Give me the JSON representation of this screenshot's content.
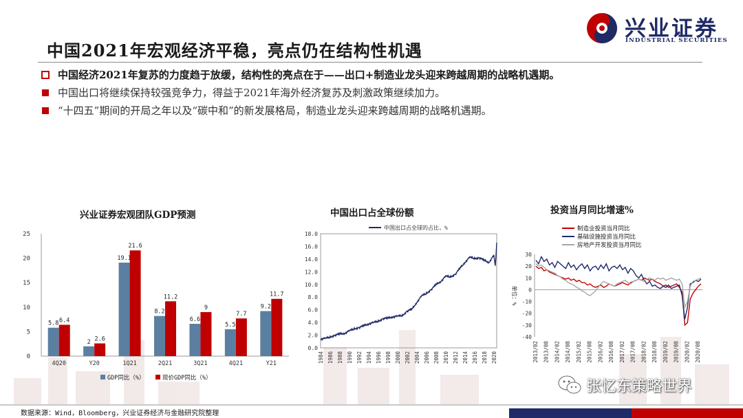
{
  "brand": {
    "name_cn": "兴业证券",
    "name_en": "INDUSTRIAL SECURITIES",
    "colors": {
      "navy": "#1f2a66",
      "red": "#c00000",
      "steel": "#5b7fa0"
    }
  },
  "slide": {
    "title": "中国2021年宏观经济平稳，亮点仍在结构性机遇",
    "bullets": [
      {
        "style": "hollow-square",
        "text": "中国经济2021年复苏的力度趋于放缓，结构性的亮点在于——出口+制造业龙头迎来跨越周期的战略机遇期。"
      },
      {
        "style": "filled-square",
        "text": "中国出口将继续保持较强竞争力，得益于2021年海外经济复苏及刺激政策继续加力。"
      },
      {
        "style": "filled-square",
        "text": "“十四五”期间的开局之年以及“碳中和”的新发展格局，制造业龙头迎来跨越周期的战略机遇期。"
      }
    ],
    "source": "数据来源：Wind，Bloomberg，兴业证券经济与金融研究院整理",
    "watermark": "张忆东策略世界"
  },
  "chart_data": [
    {
      "type": "bar",
      "title": "兴业证券宏观团队GDP预测",
      "categories": [
        "4Q20",
        "Y20",
        "1Q21",
        "2Q21",
        "3Q21",
        "4Q21",
        "Y21"
      ],
      "series": [
        {
          "name": "GDP同比（%）",
          "color": "#5b7fa0",
          "values": [
            5.8,
            2,
            19.1,
            8.2,
            6.6,
            5.5,
            9.2
          ]
        },
        {
          "name": "现价GDP同比（%）",
          "color": "#c00000",
          "values": [
            6.4,
            2.6,
            21.6,
            11.2,
            9,
            7.7,
            11.7
          ]
        }
      ],
      "value_labels": [
        [
          "5.8",
          "2",
          "19.1",
          "8.2",
          "6.6",
          "5.5",
          "9.2"
        ],
        [
          "6.4",
          "2.6",
          "21.6",
          "11.2",
          "9",
          "7.7",
          "11.7"
        ]
      ],
      "yticks": [
        "0",
        "5",
        "10",
        "15",
        "20",
        "25"
      ],
      "ylim": [
        0,
        25
      ],
      "legend": "bottom",
      "grid": false
    },
    {
      "type": "line",
      "title": "中国出口占全球份额",
      "series_name": "中国出口占全球的占比，%",
      "series_color": "#1f2a66",
      "x_range": [
        1984,
        2020.6
      ],
      "xticks": [
        "1984",
        "1986",
        "1988",
        "1990",
        "1992",
        "1994",
        "1996",
        "1998",
        "2000",
        "2002",
        "2004",
        "2006",
        "2008",
        "2010",
        "2012",
        "2014",
        "2016",
        "2018",
        "2020"
      ],
      "yticks": [
        "0.0",
        "2.0",
        "4.0",
        "6.0",
        "8.0",
        "10.0",
        "12.0",
        "14.0",
        "16.0",
        "18.0"
      ],
      "ylim": [
        0,
        18
      ],
      "points": [
        [
          1984,
          1.4
        ],
        [
          1985,
          1.5
        ],
        [
          1986,
          1.7
        ],
        [
          1987,
          2.0
        ],
        [
          1988,
          2.2
        ],
        [
          1989,
          2.3
        ],
        [
          1990,
          2.7
        ],
        [
          1991,
          3.0
        ],
        [
          1992,
          3.2
        ],
        [
          1993,
          3.5
        ],
        [
          1994,
          3.8
        ],
        [
          1995,
          4.0
        ],
        [
          1996,
          4.2
        ],
        [
          1997,
          4.6
        ],
        [
          1998,
          4.7
        ],
        [
          1999,
          4.9
        ],
        [
          2000,
          5.0
        ],
        [
          2001,
          5.1
        ],
        [
          2002,
          5.8
        ],
        [
          2003,
          6.1
        ],
        [
          2004,
          7.2
        ],
        [
          2005,
          8.2
        ],
        [
          2006,
          8.6
        ],
        [
          2007,
          9.2
        ],
        [
          2008,
          10.0
        ],
        [
          2009,
          10.5
        ],
        [
          2010,
          11.3
        ],
        [
          2011,
          11.2
        ],
        [
          2012,
          11.6
        ],
        [
          2013,
          12.6
        ],
        [
          2014,
          13.5
        ],
        [
          2015,
          14.3
        ],
        [
          2016,
          14.1
        ],
        [
          2017,
          14.2
        ],
        [
          2018,
          13.8
        ],
        [
          2019,
          13.5
        ],
        [
          2020,
          14.6
        ],
        [
          2020.3,
          12.8
        ],
        [
          2020.6,
          16.6
        ]
      ],
      "legend": "top",
      "grid": false
    },
    {
      "type": "line",
      "title": "投资当月同比增速%",
      "ylabel": "单位：%",
      "ylim": [
        -40,
        30
      ],
      "yticks": [
        "30",
        "20",
        "10",
        "0",
        "-10",
        "-20",
        "-30",
        "-40"
      ],
      "xticks": [
        "2013/02",
        "2013/08",
        "2014/02",
        "2014/08",
        "2015/02",
        "2015/08",
        "2016/02",
        "2016/08",
        "2017/02",
        "2017/08",
        "2018/02",
        "2018/08",
        "2019/02",
        "2019/08",
        "2020/02",
        "2020/08"
      ],
      "legend": "top-left",
      "grid": false,
      "series": [
        {
          "name": "制造业投资当月同比",
          "color": "#c00000",
          "values": [
            20,
            18,
            19,
            16,
            17,
            15,
            14,
            13,
            12,
            11,
            10,
            9,
            10,
            8,
            9,
            7,
            8,
            6,
            6,
            4,
            5,
            3,
            2,
            3,
            4,
            2,
            3,
            5,
            4,
            3,
            4,
            5,
            6,
            5,
            4,
            6,
            7,
            8,
            9,
            8,
            10,
            9,
            8,
            9,
            7,
            6,
            5,
            3,
            4,
            2,
            3,
            4,
            5,
            2,
            -2,
            -30,
            -28,
            -8,
            -3,
            0,
            3,
            5
          ]
        },
        {
          "name": "基础设施投资当月同比",
          "color": "#1f2a66",
          "values": [
            25,
            22,
            28,
            24,
            26,
            21,
            23,
            19,
            24,
            22,
            20,
            18,
            23,
            19,
            21,
            17,
            20,
            22,
            18,
            21,
            16,
            19,
            20,
            17,
            21,
            18,
            22,
            16,
            19,
            20,
            18,
            21,
            17,
            19,
            14,
            18,
            16,
            12,
            10,
            13,
            8,
            5,
            7,
            3,
            4,
            2,
            1,
            3,
            2,
            4,
            1,
            2,
            3,
            4,
            -5,
            -25,
            -15,
            5,
            6,
            8,
            7,
            9
          ]
        },
        {
          "name": "房地产开发投资当月同比",
          "color": "#a6a6a6",
          "values": [
            22,
            20,
            21,
            19,
            17,
            16,
            15,
            14,
            12,
            11,
            9,
            8,
            6,
            5,
            4,
            2,
            1,
            -1,
            -2,
            -4,
            -5,
            -3,
            -1,
            2,
            5,
            7,
            6,
            5,
            4,
            3,
            5,
            6,
            7,
            8,
            6,
            5,
            7,
            8,
            9,
            8,
            7,
            9,
            10,
            9,
            8,
            10,
            9,
            10,
            8,
            9,
            10,
            9,
            8,
            9,
            5,
            -15,
            -10,
            3,
            7,
            8,
            9,
            10
          ]
        }
      ]
    }
  ]
}
